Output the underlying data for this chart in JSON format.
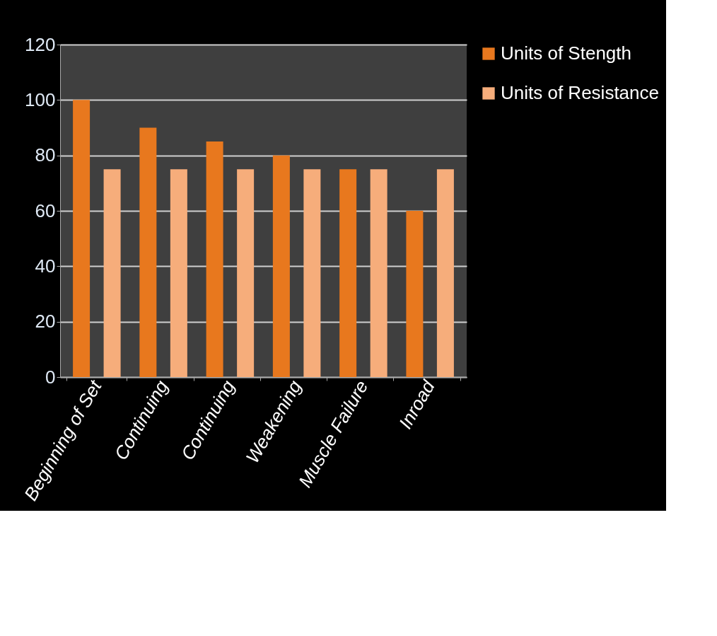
{
  "chart_data": {
    "type": "bar",
    "categories": [
      "Beginning of Set",
      "Continuing",
      "Continuing",
      "Weakening",
      "Muscle Failure",
      "Inroad"
    ],
    "series": [
      {
        "name": "Units of Stength",
        "color": "#e8781e",
        "values": [
          100,
          90,
          85,
          80,
          75,
          60
        ]
      },
      {
        "name": "Units of Resistance",
        "color": "#f6ad7b",
        "values": [
          75,
          75,
          75,
          75,
          75,
          75
        ]
      }
    ],
    "ylim": [
      0,
      120
    ],
    "yticks": [
      0,
      20,
      40,
      60,
      80,
      100,
      120
    ],
    "grid": "y",
    "legend": "right"
  }
}
